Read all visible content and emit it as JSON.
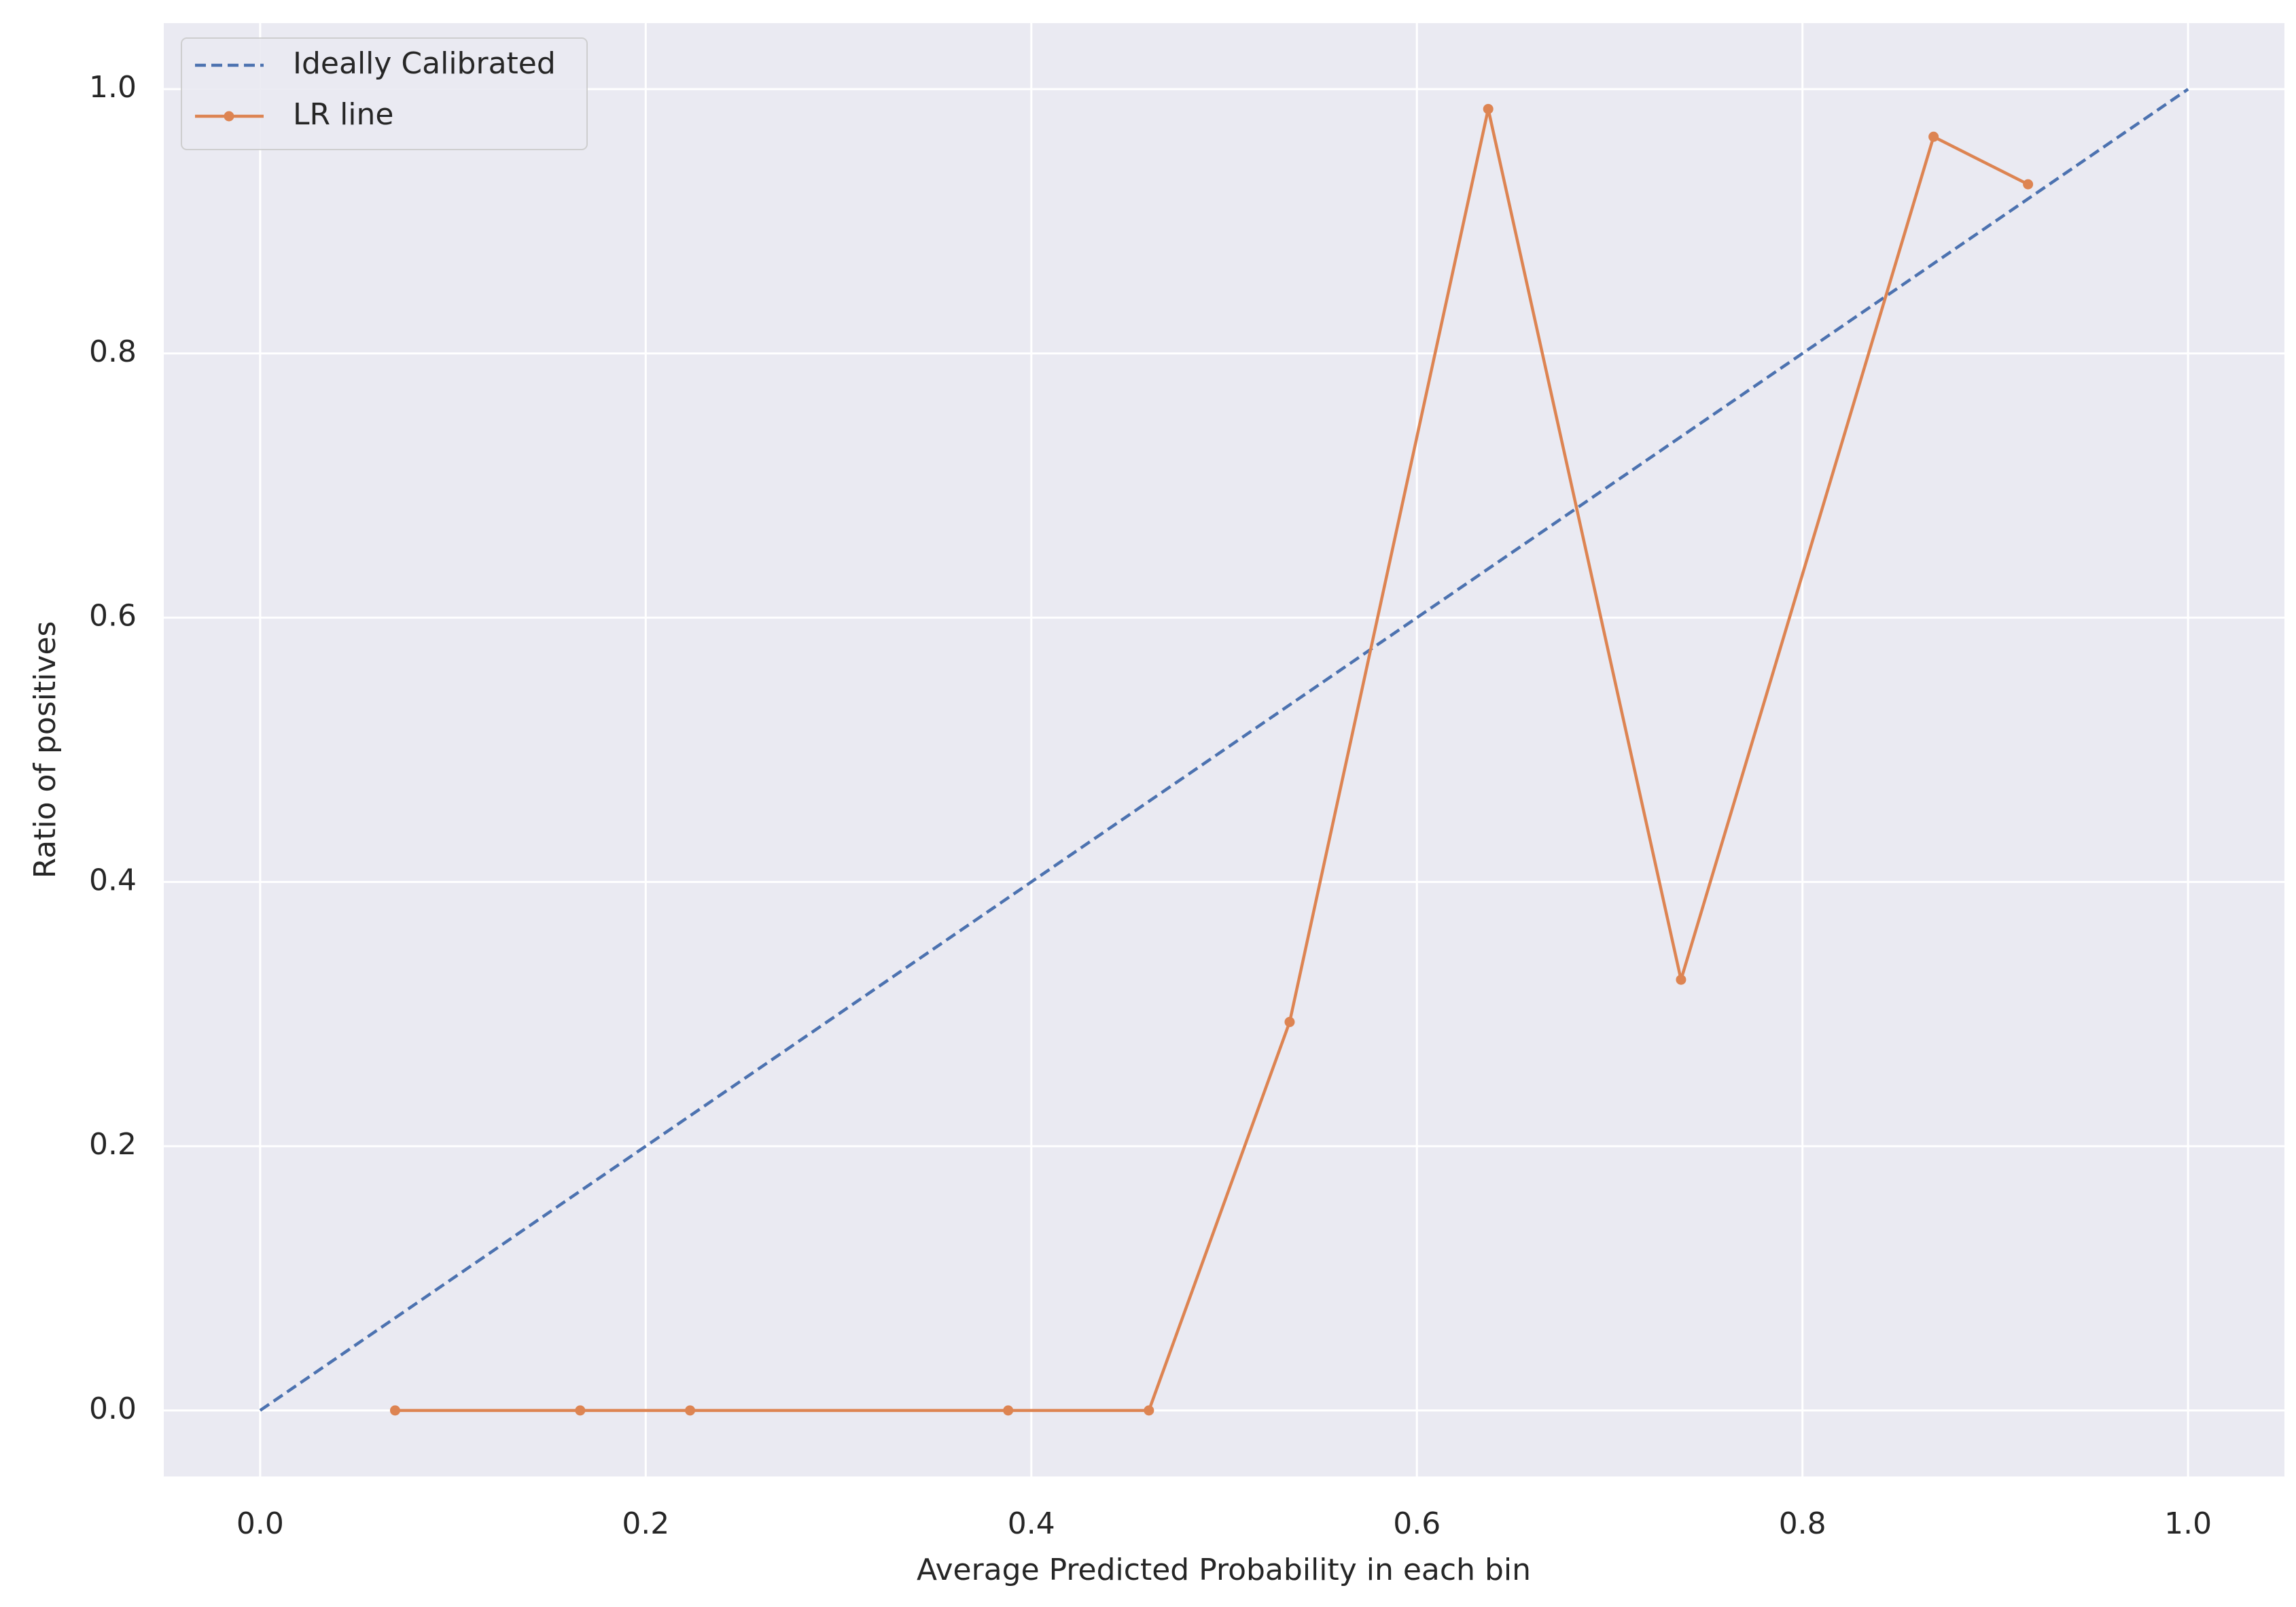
{
  "chart_data": {
    "type": "line",
    "x_label": "Average Predicted Probability in each bin",
    "y_label": "Ratio of positives",
    "series": [
      {
        "name": "Ideally Calibrated",
        "color": "#4c72b0",
        "linestyle": "dashed",
        "marker": "none",
        "x": [
          0,
          1
        ],
        "values": [
          0,
          1
        ]
      },
      {
        "name": "LR line",
        "color": "#dd8452",
        "linestyle": "solid",
        "marker": "o",
        "x": [
          0.07,
          0.166,
          0.223,
          0.388,
          0.461,
          0.534,
          0.637,
          0.737,
          0.868,
          0.917
        ],
        "values": [
          0,
          0,
          0,
          0,
          0,
          0.294,
          0.985,
          0.326,
          0.964,
          0.928
        ]
      }
    ],
    "xlim": [
      -0.05,
      1.05
    ],
    "ylim": [
      -0.05,
      1.05
    ],
    "xticks": [
      {
        "value": 0,
        "label": "0.0"
      },
      0.2,
      0.4,
      0.6,
      0.8,
      {
        "value": 1,
        "label": "1.0"
      }
    ],
    "yticks": [
      {
        "value": 0,
        "label": "0.0"
      },
      0.2,
      0.4,
      0.6,
      0.8,
      {
        "value": 1,
        "label": "1.0"
      }
    ],
    "grid": true,
    "legend": "upper left",
    "background": "#eaeaf2"
  }
}
